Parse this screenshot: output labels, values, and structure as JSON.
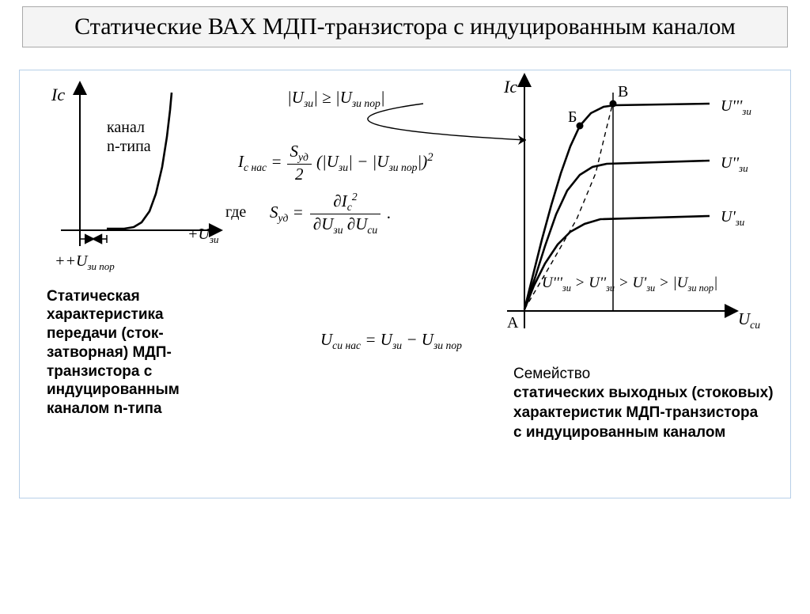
{
  "title": "Статические ВАХ МДП-транзистора с индуцированным каналом",
  "colors": {
    "border_title": "#a9a9a9",
    "bg_title": "#f4f4f4",
    "border_content": "#b7cfe8",
    "axis": "#000000",
    "curve": "#000000",
    "text": "#000000"
  },
  "left_chart": {
    "type": "line",
    "y_label": "Iс",
    "x_label": "+Uзи",
    "note": "канал\nn-типа",
    "threshold_label": "+U",
    "threshold_sub": "зи пор",
    "axis_color": "#000000",
    "curve_color": "#000000",
    "line_width": 2.6,
    "curve_points": [
      [
        78,
        178
      ],
      [
        100,
        178
      ],
      [
        112,
        176
      ],
      [
        122,
        170
      ],
      [
        132,
        156
      ],
      [
        140,
        134
      ],
      [
        148,
        100
      ],
      [
        154,
        62
      ],
      [
        158,
        28
      ],
      [
        160,
        6
      ]
    ]
  },
  "left_caption": "Статическая характеристика передачи (сток-затворная) МДП-транзистора с индуцированным каналом n-типа",
  "formulas": {
    "ineq": "|Uзи| ≥ |Uзи пор|",
    "where": "где",
    "i_sat_lhs": "I",
    "i_sat_sub": "с нас",
    "s_ud": "S",
    "s_ud_sub": "уд",
    "paren": "(|Uзи| − |Uзи пор|)",
    "partial_top": "∂Iс²",
    "partial_bot": "∂Uзи ∂Uси",
    "u_sat": "Uси нас = Uзи − Uзи пор"
  },
  "right_chart": {
    "type": "line",
    "y_label": "Iс",
    "x_label": "Uси",
    "point_A": "А",
    "point_B": "Б",
    "point_V": "В",
    "curve_labels": [
      "U'''зи",
      "U''зи",
      "U'зи"
    ],
    "inequality": "U'''зи > U''зи > U'зи > |Uзи пор|",
    "caption": "Семейство\nстатических выходных (стоковых) характеристик МДП-транзистора\nс индуцированным каналом",
    "axis_color": "#000000",
    "curve_color": "#000000",
    "line_width": 2.6,
    "curves": [
      [
        [
          36,
          290
        ],
        [
          46,
          250
        ],
        [
          58,
          202
        ],
        [
          70,
          158
        ],
        [
          82,
          118
        ],
        [
          94,
          84
        ],
        [
          106,
          58
        ],
        [
          120,
          42
        ],
        [
          136,
          34
        ],
        [
          150,
          32
        ],
        [
          270,
          30
        ]
      ],
      [
        [
          36,
          290
        ],
        [
          50,
          248
        ],
        [
          62,
          210
        ],
        [
          76,
          170
        ],
        [
          90,
          140
        ],
        [
          106,
          120
        ],
        [
          122,
          110
        ],
        [
          140,
          106
        ],
        [
          270,
          102
        ]
      ],
      [
        [
          36,
          290
        ],
        [
          48,
          260
        ],
        [
          62,
          232
        ],
        [
          78,
          208
        ],
        [
          94,
          192
        ],
        [
          112,
          182
        ],
        [
          132,
          176
        ],
        [
          270,
          172
        ]
      ]
    ],
    "boundary_dash": [
      [
        36,
        290
      ],
      [
        70,
        232
      ],
      [
        102,
        176
      ],
      [
        126,
        118
      ],
      [
        140,
        60
      ],
      [
        148,
        28
      ]
    ],
    "marker_B": [
      106,
      58
    ],
    "marker_V": [
      148,
      30
    ]
  }
}
